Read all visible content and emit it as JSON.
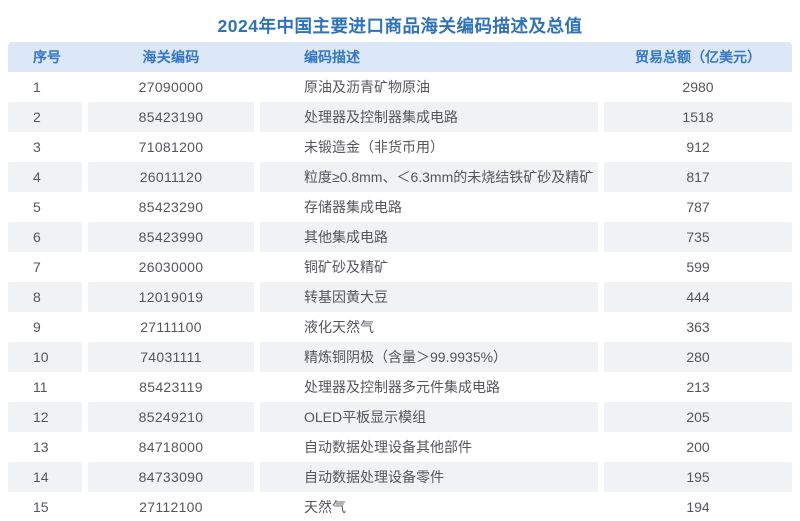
{
  "title": "2024年中国主要进口商品海关编码描述及总值",
  "colors": {
    "title_text": "#2e72ba",
    "header_bg": "#dce8f7",
    "header_text": "#3577c2",
    "stripe_bg": "#f1f2f4",
    "body_text": "#54565b",
    "page_bg": "#ffffff"
  },
  "chart_data": {
    "type": "table",
    "title": "2024年中国主要进口商品海关编码描述及总值",
    "columns": [
      "序号",
      "海关编码",
      "编码描述",
      "贸易总额（亿美元）"
    ],
    "rows": [
      [
        1,
        "27090000",
        "原油及沥青矿物原油",
        2980
      ],
      [
        2,
        "85423190",
        "处理器及控制器集成电路",
        1518
      ],
      [
        3,
        "71081200",
        "未锻造金（非货币用）",
        912
      ],
      [
        4,
        "26011120",
        "粒度≥0.8mm、＜6.3mm的未烧结铁矿砂及精矿",
        817
      ],
      [
        5,
        "85423290",
        "存储器集成电路",
        787
      ],
      [
        6,
        "85423990",
        "其他集成电路",
        735
      ],
      [
        7,
        "26030000",
        "铜矿砂及精矿",
        599
      ],
      [
        8,
        "12019019",
        "转基因黄大豆",
        444
      ],
      [
        9,
        "27111100",
        "液化天然气",
        363
      ],
      [
        10,
        "74031111",
        "精炼铜阴极（含量＞99.9935%）",
        280
      ],
      [
        11,
        "85423119",
        "处理器及控制器多元件集成电路",
        213
      ],
      [
        12,
        "85249210",
        "OLED平板显示模组",
        205
      ],
      [
        13,
        "84718000",
        "自动数据处理设备其他部件",
        200
      ],
      [
        14,
        "84733090",
        "自动数据处理设备零件",
        195
      ],
      [
        15,
        "27112100",
        "天然气",
        194
      ]
    ],
    "layout": {
      "zebra_striping": true,
      "striped_rows": "even",
      "grid": false,
      "header_position": "top"
    }
  }
}
